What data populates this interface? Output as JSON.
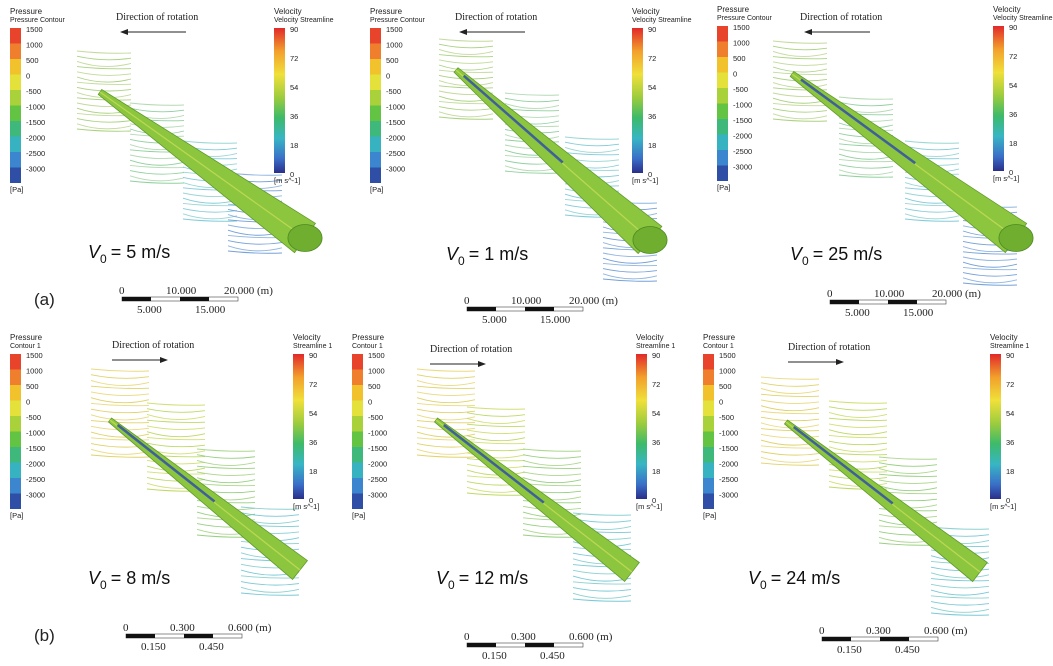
{
  "row_labels": [
    "(a)",
    "(b)"
  ],
  "direction_label": "Direction of rotation",
  "pressure_legend_a": {
    "title": "Pressure",
    "subtitle": "Pressure Contour",
    "unit": "[Pa]",
    "ticks": [
      "1500",
      "1000",
      "500",
      "0",
      "-500",
      "-1000",
      "-1500",
      "-2000",
      "-2500",
      "-3000"
    ]
  },
  "pressure_legend_b": {
    "title": "Pressure",
    "subtitle": "Contour 1",
    "unit": "[Pa]",
    "ticks": [
      "1500",
      "1000",
      "500",
      "0",
      "-500",
      "-1000",
      "-1500",
      "-2000",
      "-2500",
      "-3000"
    ]
  },
  "velocity_legend_a": {
    "title": "Velocity",
    "subtitle": "Velocity Streamline",
    "unit": "[m s^-1]",
    "ticks": [
      "90",
      "72",
      "54",
      "36",
      "18",
      "0"
    ]
  },
  "velocity_legend_b": {
    "title": "Velocity",
    "subtitle": "Streamline 1",
    "unit": "[m s^-1]",
    "ticks": [
      "90",
      "72",
      "54",
      "36",
      "18",
      "0"
    ]
  },
  "scale_a": {
    "top": [
      "0",
      "10.000",
      "20.000 (m)"
    ],
    "bottom": [
      "5.000",
      "15.000"
    ]
  },
  "scale_b": {
    "top": [
      "0",
      "0.300",
      "0.600 (m)"
    ],
    "bottom": [
      "0.150",
      "0.450"
    ]
  },
  "panels": [
    {
      "row": "a",
      "v_symbol": "V",
      "subscript": "0",
      "value": "= 5 m/s",
      "arrow": "left"
    },
    {
      "row": "a",
      "v_symbol": "V",
      "subscript": "0",
      "value": "= 1 m/s",
      "arrow": "left"
    },
    {
      "row": "a",
      "v_symbol": "V",
      "subscript": "0",
      "value": "= 25 m/s",
      "arrow": "left"
    },
    {
      "row": "b",
      "v_symbol": "V",
      "subscript": "0",
      "value": "= 8 m/s",
      "arrow": "right"
    },
    {
      "row": "b",
      "v_symbol": "V",
      "subscript": "0",
      "value": "= 12 m/s",
      "arrow": "right"
    },
    {
      "row": "b",
      "v_symbol": "V",
      "subscript": "0",
      "value": "= 24 m/s",
      "arrow": "right"
    }
  ],
  "colors": {
    "pressure_bands": [
      "#e8442c",
      "#ef7f2c",
      "#f2c22c",
      "#e4e23a",
      "#a9d23a",
      "#62c442",
      "#3fb87c",
      "#36b2c0",
      "#3b86cf",
      "#2f4fa6"
    ],
    "velocity_gradient": [
      "#e1292a",
      "#f2a02c",
      "#f0e03a",
      "#9ccc3e",
      "#3dba6a",
      "#38b6c4",
      "#3a6fc8",
      "#2a2f8a"
    ],
    "blade": "#8cc63f",
    "blade_dark": "#6fae2f"
  }
}
